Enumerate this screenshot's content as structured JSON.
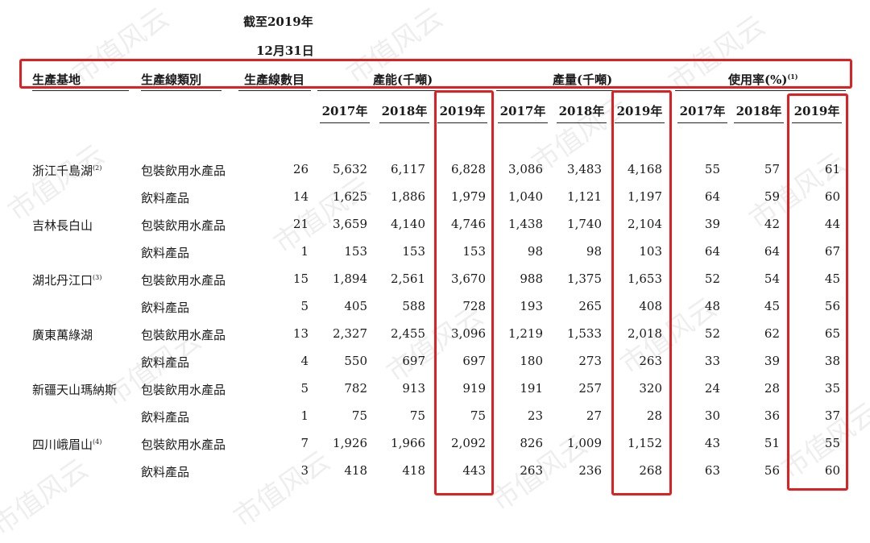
{
  "watermark": "市值风云",
  "header": {
    "cutoff_line1": "截至2019年",
    "cutoff_line2": "12月31日",
    "base": "生產基地",
    "line_type": "生產線類別",
    "line_count": "生產線數目",
    "capacity": "產能(千噸)",
    "output": "產量(千噸)",
    "utilization": "使用率(%)",
    "utilization_note": "(1)"
  },
  "years": [
    "2017年",
    "2018年",
    "2019年",
    "2017年",
    "2018年",
    "2019年",
    "2017年",
    "2018年",
    "2019年"
  ],
  "rows": [
    {
      "base": "浙江千島湖",
      "note": "(2)",
      "type": "包裝飲用水產品",
      "lines": "26",
      "vals": [
        "5,632",
        "6,117",
        "6,828",
        "3,086",
        "3,483",
        "4,168",
        "55",
        "57",
        "61"
      ]
    },
    {
      "base": "",
      "note": "",
      "type": "飲料產品",
      "lines": "14",
      "vals": [
        "1,625",
        "1,886",
        "1,979",
        "1,040",
        "1,121",
        "1,197",
        "64",
        "59",
        "60"
      ]
    },
    {
      "base": "吉林長白山",
      "note": "",
      "type": "包裝飲用水產品",
      "lines": "21",
      "vals": [
        "3,659",
        "4,140",
        "4,746",
        "1,438",
        "1,740",
        "2,104",
        "39",
        "42",
        "44"
      ]
    },
    {
      "base": "",
      "note": "",
      "type": "飲料產品",
      "lines": "1",
      "vals": [
        "153",
        "153",
        "153",
        "98",
        "98",
        "103",
        "64",
        "64",
        "67"
      ]
    },
    {
      "base": "湖北丹江口",
      "note": "(3)",
      "type": "包裝飲用水產品",
      "lines": "15",
      "vals": [
        "1,894",
        "2,561",
        "3,670",
        "988",
        "1,375",
        "1,653",
        "52",
        "54",
        "45"
      ]
    },
    {
      "base": "",
      "note": "",
      "type": "飲料產品",
      "lines": "5",
      "vals": [
        "405",
        "588",
        "728",
        "193",
        "265",
        "408",
        "48",
        "45",
        "56"
      ]
    },
    {
      "base": "廣東萬綠湖",
      "note": "",
      "type": "包裝飲用水產品",
      "lines": "13",
      "vals": [
        "2,327",
        "2,455",
        "3,096",
        "1,219",
        "1,533",
        "2,018",
        "52",
        "62",
        "65"
      ]
    },
    {
      "base": "",
      "note": "",
      "type": "飲料產品",
      "lines": "4",
      "vals": [
        "550",
        "697",
        "697",
        "180",
        "273",
        "263",
        "33",
        "39",
        "38"
      ]
    },
    {
      "base": "新疆天山瑪納斯",
      "note": "",
      "type": "包裝飲用水產品",
      "lines": "5",
      "vals": [
        "782",
        "913",
        "919",
        "191",
        "257",
        "320",
        "24",
        "28",
        "35"
      ]
    },
    {
      "base": "",
      "note": "",
      "type": "飲料產品",
      "lines": "1",
      "vals": [
        "75",
        "75",
        "75",
        "23",
        "27",
        "28",
        "30",
        "36",
        "37"
      ]
    },
    {
      "base": "四川峨眉山",
      "note": "(4)",
      "type": "包裝飲用水產品",
      "lines": "7",
      "vals": [
        "1,926",
        "1,966",
        "2,092",
        "826",
        "1,009",
        "1,152",
        "43",
        "51",
        "55"
      ]
    },
    {
      "base": "",
      "note": "",
      "type": "飲料產品",
      "lines": "3",
      "vals": [
        "418",
        "418",
        "443",
        "263",
        "236",
        "268",
        "63",
        "56",
        "60"
      ]
    }
  ],
  "colors": {
    "highlight": "#e02020",
    "text": "#1a1a1a",
    "watermark": "#c8c8c8"
  }
}
